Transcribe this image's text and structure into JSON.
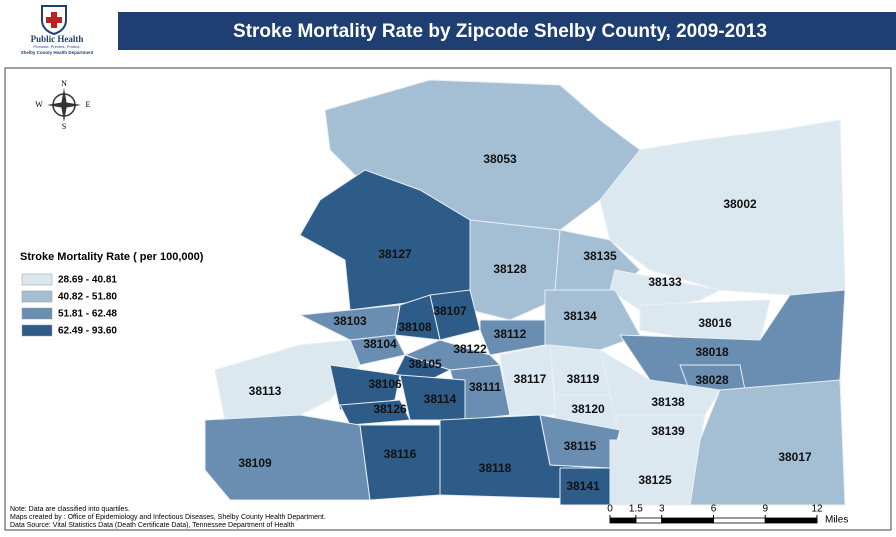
{
  "header": {
    "logo_title": "Public Health",
    "logo_tagline": "Promote. Prevent. Protect.",
    "logo_org": "Shelby County Health Department",
    "title": "Stroke Mortality Rate by Zipcode Shelby County, 2009-2013"
  },
  "compass": {
    "n": "N",
    "s": "S",
    "e": "E",
    "w": "W"
  },
  "legend": {
    "title": "Stroke Mortality Rate ( per 100,000)",
    "items": [
      {
        "label": "28.69 - 40.81",
        "color": "#dce8f0"
      },
      {
        "label": "40.82 - 51.80",
        "color": "#a4bed3"
      },
      {
        "label": "51.81 - 62.48",
        "color": "#6a8eb2"
      },
      {
        "label": "62.49 - 93.60",
        "color": "#2e5c88"
      }
    ]
  },
  "zipcodes": [
    {
      "label": "38053",
      "color": "#a4bed3"
    },
    {
      "label": "38002",
      "color": "#dce8f0"
    },
    {
      "label": "38127",
      "color": "#2e5c88"
    },
    {
      "label": "38128",
      "color": "#a4bed3"
    },
    {
      "label": "38135",
      "color": "#a4bed3"
    },
    {
      "label": "38133",
      "color": "#dce8f0"
    },
    {
      "label": "38016",
      "color": "#dce8f0"
    },
    {
      "label": "38134",
      "color": "#a4bed3"
    },
    {
      "label": "38018",
      "color": "#6a8eb2"
    },
    {
      "label": "38028",
      "color": "#6a8eb2"
    },
    {
      "label": "38017",
      "color": "#a4bed3"
    },
    {
      "label": "38107",
      "color": "#2e5c88"
    },
    {
      "label": "38108",
      "color": "#2e5c88"
    },
    {
      "label": "38103",
      "color": "#6a8eb2"
    },
    {
      "label": "38112",
      "color": "#6a8eb2"
    },
    {
      "label": "38104",
      "color": "#6a8eb2"
    },
    {
      "label": "38122",
      "color": "#6a8eb2"
    },
    {
      "label": "38105",
      "color": "#2e5c88"
    },
    {
      "label": "38113",
      "color": "#dce8f0"
    },
    {
      "label": "38106",
      "color": "#2e5c88"
    },
    {
      "label": "38111",
      "color": "#6a8eb2"
    },
    {
      "label": "38117",
      "color": "#dce8f0"
    },
    {
      "label": "38119",
      "color": "#dce8f0"
    },
    {
      "label": "38120",
      "color": "#dce8f0"
    },
    {
      "label": "38138",
      "color": "#dce8f0"
    },
    {
      "label": "38139",
      "color": "#dce8f0"
    },
    {
      "label": "38114",
      "color": "#2e5c88"
    },
    {
      "label": "38126",
      "color": "#2e5c88"
    },
    {
      "label": "38109",
      "color": "#6a8eb2"
    },
    {
      "label": "38116",
      "color": "#2e5c88"
    },
    {
      "label": "38118",
      "color": "#2e5c88"
    },
    {
      "label": "38115",
      "color": "#6a8eb2"
    },
    {
      "label": "38125",
      "color": "#dce8f0"
    },
    {
      "label": "38141",
      "color": "#2e5c88"
    }
  ],
  "notes": [
    "Note: Data are classified into quartiles.",
    "Maps created by : Office of Epidemiology and Infectious Diseases, Shelby County Health Department.",
    "Data Source: Vital Statistics Data (Death Certificate Data), Tennessee Department of Health"
  ],
  "scale": {
    "ticks": [
      0,
      1.5,
      3,
      6,
      9,
      12
    ],
    "unit": "Miles"
  }
}
